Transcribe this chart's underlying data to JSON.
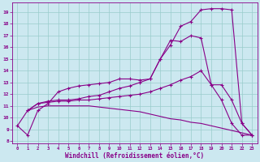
{
  "xlabel": "Windchill (Refroidissement éolien,°C)",
  "bg_color": "#cce8f0",
  "line_color": "#880088",
  "grid_color": "#99cccc",
  "xlim": [
    -0.5,
    23.5
  ],
  "ylim": [
    7.8,
    19.8
  ],
  "xticks": [
    0,
    1,
    2,
    3,
    4,
    5,
    6,
    7,
    8,
    9,
    10,
    11,
    12,
    13,
    14,
    15,
    16,
    17,
    18,
    19,
    20,
    21,
    22,
    23
  ],
  "yticks": [
    8,
    9,
    10,
    11,
    12,
    13,
    14,
    15,
    16,
    17,
    18,
    19
  ],
  "line1_x": [
    0,
    1,
    2,
    3,
    4,
    5,
    6,
    7,
    8,
    9,
    10,
    11,
    12,
    13,
    14,
    15,
    16,
    17,
    18,
    19,
    20,
    21,
    22,
    23
  ],
  "line1_y": [
    9.3,
    8.5,
    10.6,
    11.2,
    12.2,
    12.5,
    12.7,
    12.8,
    12.9,
    13.0,
    13.3,
    13.3,
    13.2,
    13.3,
    15.0,
    16.6,
    16.5,
    17.0,
    16.8,
    12.8,
    11.5,
    9.5,
    8.5,
    8.5
  ],
  "line2_x": [
    1,
    2,
    3,
    4,
    5,
    6,
    7,
    8,
    9,
    10,
    11,
    12,
    13,
    14,
    15,
    16,
    17,
    18,
    19,
    20,
    21,
    22,
    23
  ],
  "line2_y": [
    10.6,
    11.2,
    11.4,
    11.5,
    11.5,
    11.6,
    11.8,
    11.9,
    12.2,
    12.5,
    12.7,
    13.0,
    13.3,
    15.0,
    16.2,
    17.8,
    18.2,
    19.2,
    19.3,
    19.3,
    19.2,
    9.5,
    8.5
  ],
  "line3_x": [
    1,
    2,
    3,
    4,
    5,
    6,
    7,
    8,
    9,
    10,
    11,
    12,
    13,
    14,
    15,
    16,
    17,
    18,
    19,
    20,
    21,
    22,
    23
  ],
  "line3_y": [
    10.6,
    11.2,
    11.3,
    11.4,
    11.4,
    11.5,
    11.5,
    11.6,
    11.7,
    11.8,
    11.9,
    12.0,
    12.2,
    12.5,
    12.8,
    13.2,
    13.5,
    14.0,
    12.8,
    12.8,
    11.5,
    9.5,
    8.5
  ],
  "line4_x": [
    0,
    1,
    2,
    3,
    4,
    5,
    6,
    7,
    8,
    9,
    10,
    11,
    12,
    13,
    14,
    15,
    16,
    17,
    18,
    19,
    20,
    21,
    22,
    23
  ],
  "line4_y": [
    9.3,
    10.6,
    10.9,
    11.0,
    11.0,
    11.0,
    11.0,
    11.0,
    10.9,
    10.8,
    10.7,
    10.6,
    10.5,
    10.3,
    10.1,
    9.9,
    9.8,
    9.6,
    9.5,
    9.3,
    9.1,
    8.9,
    8.7,
    8.5
  ]
}
